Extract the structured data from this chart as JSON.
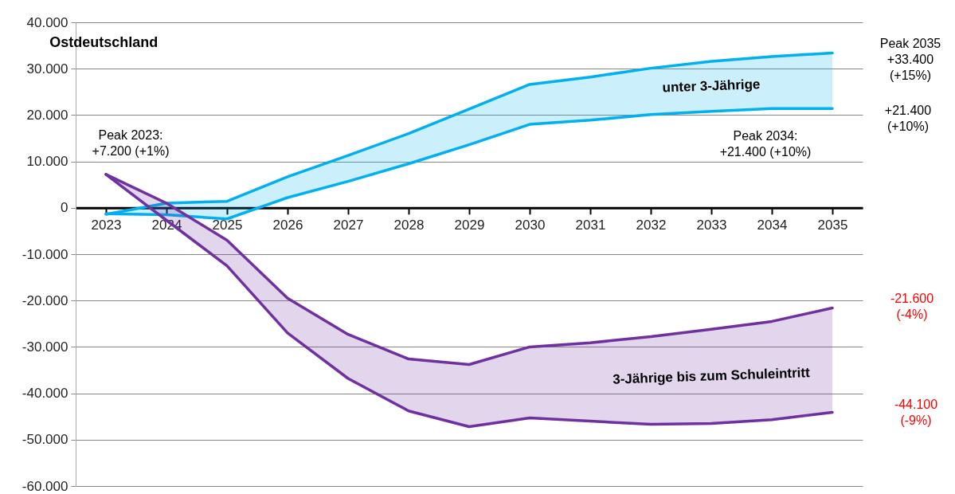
{
  "chart_data": {
    "type": "line",
    "title": "Ostdeutschland",
    "categories": [
      "2023",
      "2024",
      "2025",
      "2026",
      "2027",
      "2028",
      "2029",
      "2030",
      "2031",
      "2032",
      "2033",
      "2034",
      "2035"
    ],
    "series": [
      {
        "name": "unter 3-Jährige",
        "color": "#00b0f0",
        "values": [
          -1400,
          1000,
          1400,
          6700,
          11300,
          16000,
          21300,
          26600,
          28200,
          30100,
          31600,
          32600,
          33400
        ],
        "lower": [
          -1300,
          -1500,
          -2400,
          2200,
          5700,
          9500,
          13600,
          18000,
          18900,
          20100,
          20800,
          21400,
          21400
        ],
        "upper": [
          -1400,
          1000,
          1400,
          6700,
          11300,
          16000,
          21300,
          26600,
          28200,
          30100,
          31600,
          32600,
          33400
        ]
      },
      {
        "color": "#00b0f0",
        "values": [
          -1300,
          -1500,
          -2400,
          2200,
          5700,
          9500,
          13600,
          18000,
          18900,
          20100,
          20800,
          21400,
          21400
        ]
      },
      {
        "name": "3-Jährige bis zum Schuleintritt",
        "color": "#7030a0",
        "values": [
          7200,
          1000,
          -7000,
          -19500,
          -27300,
          -32600,
          -33800,
          -30000,
          -29100,
          -27800,
          -26200,
          -24500,
          -21600
        ],
        "lower": [
          7200,
          -2700,
          -12500,
          -27000,
          -36800,
          -43800,
          -47200,
          -45300,
          -46000,
          -46700,
          -46500,
          -45700,
          -44100
        ],
        "upper": [
          7200,
          1000,
          -7000,
          -19500,
          -27300,
          -32600,
          -33800,
          -30000,
          -29100,
          -27800,
          -26200,
          -24500,
          -21600
        ]
      },
      {
        "color": "#7030a0",
        "values": [
          7200,
          -2700,
          -12500,
          -27000,
          -36800,
          -43800,
          -47200,
          -45300,
          -46000,
          -46700,
          -46500,
          -45700,
          -44100
        ]
      }
    ],
    "ylim": [
      -60000,
      40000
    ],
    "yticks": [
      {
        "value": -60000,
        "label": "-60.000"
      },
      {
        "value": -50000,
        "label": "-50.000"
      },
      {
        "value": -40000,
        "label": "-40.000"
      },
      {
        "value": -30000,
        "label": "-30.000"
      },
      {
        "value": -20000,
        "label": "-20.000"
      },
      {
        "value": -10000,
        "label": "-10.000"
      },
      {
        "value": 0,
        "label": "0"
      },
      {
        "value": 10000,
        "label": "10.000"
      },
      {
        "value": 20000,
        "label": "20.000"
      },
      {
        "value": 30000,
        "label": "30.000"
      },
      {
        "value": 40000,
        "label": "40.000"
      }
    ],
    "grid": "y",
    "annotations": [
      {
        "text": "Peak 2023:\n+7.200 (+1%)",
        "x": "2023",
        "y": 7200
      },
      {
        "text": "Peak 2034:\n+21.400 (+10%)",
        "x": "2034",
        "y": 21400
      },
      "Peak 2035\n+33.400\n(+15%)",
      "+21.400\n(+10%)",
      "-21.600\n(-4%)",
      "-44.100\n(-9%)"
    ]
  }
}
